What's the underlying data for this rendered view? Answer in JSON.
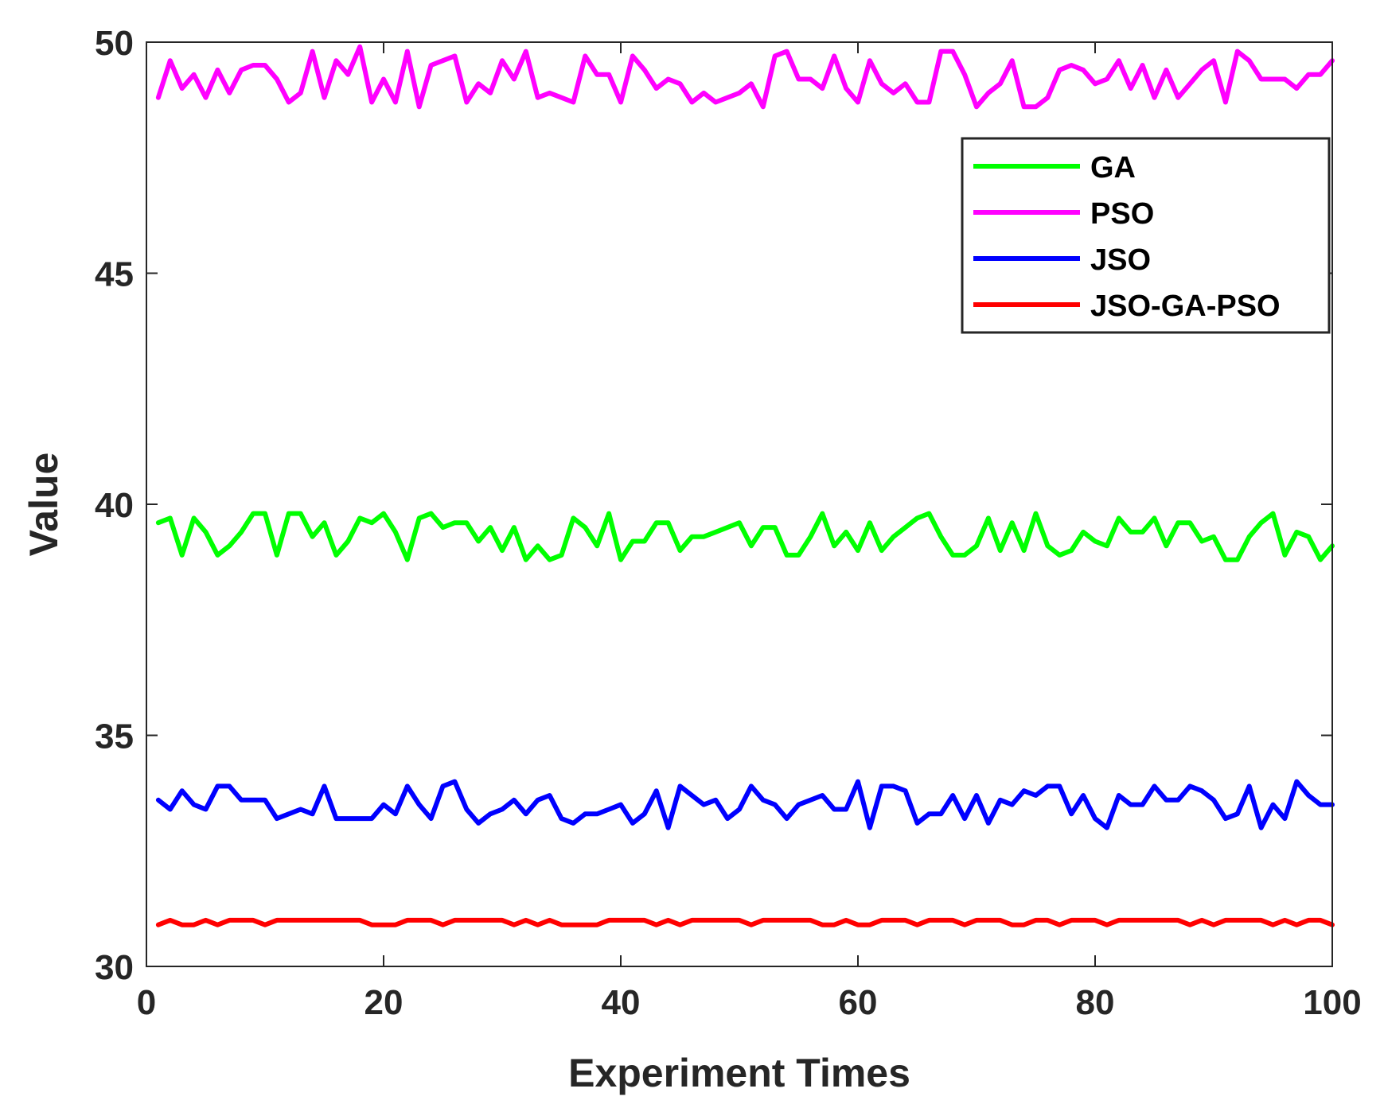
{
  "chart_data": {
    "type": "line",
    "title": "",
    "xlabel": "Experiment Times",
    "ylabel": "Value",
    "xlim": [
      0,
      100
    ],
    "ylim": [
      30,
      50
    ],
    "xticks": [
      0,
      20,
      40,
      60,
      80,
      100
    ],
    "yticks": [
      30,
      35,
      40,
      45,
      50
    ],
    "xtick_labels": [
      "0",
      "20",
      "40",
      "60",
      "80",
      "100"
    ],
    "ytick_labels": [
      "30",
      "35",
      "40",
      "45",
      "50"
    ],
    "grid": false,
    "legend_position": "top-right",
    "series": [
      {
        "name": "GA",
        "color": "#00ff00",
        "x_start": 1,
        "values": [
          39.6,
          39.7,
          38.9,
          39.7,
          39.4,
          38.9,
          39.1,
          39.4,
          39.8,
          39.8,
          38.9,
          39.8,
          39.8,
          39.3,
          39.6,
          38.9,
          39.2,
          39.7,
          39.6,
          39.8,
          39.4,
          38.8,
          39.7,
          39.8,
          39.5,
          39.6,
          39.6,
          39.2,
          39.5,
          39.0,
          39.5,
          38.8,
          39.1,
          38.8,
          38.9,
          39.7,
          39.5,
          39.1,
          39.8,
          38.8,
          39.2,
          39.2,
          39.6,
          39.6,
          39.0,
          39.3,
          39.3,
          39.4,
          39.5,
          39.6,
          39.1,
          39.5,
          39.5,
          38.9,
          38.9,
          39.3,
          39.8,
          39.1,
          39.4,
          39.0,
          39.6,
          39.0,
          39.3,
          39.5,
          39.7,
          39.8,
          39.3,
          38.9,
          38.9,
          39.1,
          39.7,
          39.0,
          39.6,
          39.0,
          39.8,
          39.1,
          38.9,
          39.0,
          39.4,
          39.2,
          39.1,
          39.7,
          39.4,
          39.4,
          39.7,
          39.1,
          39.6,
          39.6,
          39.2,
          39.3,
          38.8,
          38.8,
          39.3,
          39.6,
          39.8,
          38.9,
          39.4,
          39.3,
          38.8,
          39.1
        ]
      },
      {
        "name": "PSO",
        "color": "#ff00ff",
        "x_start": 1,
        "values": [
          48.8,
          49.6,
          49.0,
          49.3,
          48.8,
          49.4,
          48.9,
          49.4,
          49.5,
          49.5,
          49.2,
          48.7,
          48.9,
          49.8,
          48.8,
          49.6,
          49.3,
          49.9,
          48.7,
          49.2,
          48.7,
          49.8,
          48.6,
          49.5,
          49.6,
          49.7,
          48.7,
          49.1,
          48.9,
          49.6,
          49.2,
          49.8,
          48.8,
          48.9,
          48.8,
          48.7,
          49.7,
          49.3,
          49.3,
          48.7,
          49.7,
          49.4,
          49.0,
          49.2,
          49.1,
          48.7,
          48.9,
          48.7,
          48.8,
          48.9,
          49.1,
          48.6,
          49.7,
          49.8,
          49.2,
          49.2,
          49.0,
          49.7,
          49.0,
          48.7,
          49.6,
          49.1,
          48.9,
          49.1,
          48.7,
          48.7,
          49.8,
          49.8,
          49.3,
          48.6,
          48.9,
          49.1,
          49.6,
          48.6,
          48.6,
          48.8,
          49.4,
          49.5,
          49.4,
          49.1,
          49.2,
          49.6,
          49.0,
          49.5,
          48.8,
          49.4,
          48.8,
          49.1,
          49.4,
          49.6,
          48.7,
          49.8,
          49.6,
          49.2,
          49.2,
          49.2,
          49.0,
          49.3,
          49.3,
          49.6
        ]
      },
      {
        "name": "JSO",
        "color": "#0000ff",
        "x_start": 1,
        "values": [
          33.6,
          33.4,
          33.8,
          33.5,
          33.4,
          33.9,
          33.9,
          33.6,
          33.6,
          33.6,
          33.2,
          33.3,
          33.4,
          33.3,
          33.9,
          33.2,
          33.2,
          33.2,
          33.2,
          33.5,
          33.3,
          33.9,
          33.5,
          33.2,
          33.9,
          34.0,
          33.4,
          33.1,
          33.3,
          33.4,
          33.6,
          33.3,
          33.6,
          33.7,
          33.2,
          33.1,
          33.3,
          33.3,
          33.4,
          33.5,
          33.1,
          33.3,
          33.8,
          33.0,
          33.9,
          33.7,
          33.5,
          33.6,
          33.2,
          33.4,
          33.9,
          33.6,
          33.5,
          33.2,
          33.5,
          33.6,
          33.7,
          33.4,
          33.4,
          34.0,
          33.0,
          33.9,
          33.9,
          33.8,
          33.1,
          33.3,
          33.3,
          33.7,
          33.2,
          33.7,
          33.1,
          33.6,
          33.5,
          33.8,
          33.7,
          33.9,
          33.9,
          33.3,
          33.7,
          33.2,
          33.0,
          33.7,
          33.5,
          33.5,
          33.9,
          33.6,
          33.6,
          33.9,
          33.8,
          33.6,
          33.2,
          33.3,
          33.9,
          33.0,
          33.5,
          33.2,
          34.0,
          33.7,
          33.5,
          33.5
        ]
      },
      {
        "name": "JSO-GA-PSO",
        "color": "#ff0000",
        "x_start": 1,
        "values": [
          30.9,
          31.0,
          30.9,
          30.9,
          31.0,
          30.9,
          31.0,
          31.0,
          31.0,
          30.9,
          31.0,
          31.0,
          31.0,
          31.0,
          31.0,
          31.0,
          31.0,
          31.0,
          30.9,
          30.9,
          30.9,
          31.0,
          31.0,
          31.0,
          30.9,
          31.0,
          31.0,
          31.0,
          31.0,
          31.0,
          30.9,
          31.0,
          30.9,
          31.0,
          30.9,
          30.9,
          30.9,
          30.9,
          31.0,
          31.0,
          31.0,
          31.0,
          30.9,
          31.0,
          30.9,
          31.0,
          31.0,
          31.0,
          31.0,
          31.0,
          30.9,
          31.0,
          31.0,
          31.0,
          31.0,
          31.0,
          30.9,
          30.9,
          31.0,
          30.9,
          30.9,
          31.0,
          31.0,
          31.0,
          30.9,
          31.0,
          31.0,
          31.0,
          30.9,
          31.0,
          31.0,
          31.0,
          30.9,
          30.9,
          31.0,
          31.0,
          30.9,
          31.0,
          31.0,
          31.0,
          30.9,
          31.0,
          31.0,
          31.0,
          31.0,
          31.0,
          31.0,
          30.9,
          31.0,
          30.9,
          31.0,
          31.0,
          31.0,
          31.0,
          30.9,
          31.0,
          30.9,
          31.0,
          31.0,
          30.9
        ]
      }
    ]
  }
}
